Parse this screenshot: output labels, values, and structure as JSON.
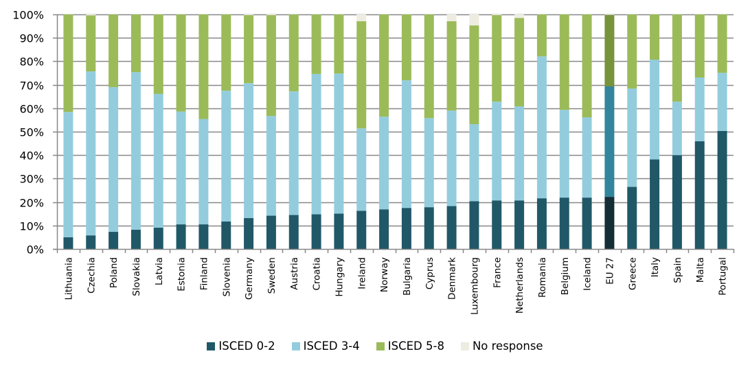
{
  "chart_data": {
    "type": "bar",
    "stacked": true,
    "title": "",
    "xlabel": "",
    "ylabel": "",
    "ylim": [
      0,
      100
    ],
    "y_ticks": [
      "0%",
      "10%",
      "20%",
      "30%",
      "40%",
      "50%",
      "60%",
      "70%",
      "80%",
      "90%",
      "100%"
    ],
    "grid": true,
    "legend_position": "bottom",
    "highlight_category": "EU 27",
    "categories": [
      "Lithuania",
      "Czechia",
      "Poland",
      "Slovakia",
      "Latvia",
      "Estonia",
      "Finland",
      "Slovenia",
      "Germany",
      "Sweden",
      "Austria",
      "Croatia",
      "Hungary",
      "Ireland",
      "Norway",
      "Bulgaria",
      "Cyprus",
      "Denmark",
      "Luxembourg",
      "France",
      "Netherlands",
      "Romania",
      "Belgium",
      "Iceland",
      "EU 27",
      "Greece",
      "Italy",
      "Spain",
      "Malta",
      "Portugal"
    ],
    "series": [
      {
        "name": "ISCED 0-2",
        "color": "#215868",
        "highlight_color": "#152E36",
        "values": [
          5.0,
          5.8,
          7.3,
          8.2,
          9.1,
          10.5,
          10.5,
          11.7,
          13.2,
          14.2,
          14.5,
          14.8,
          15.1,
          16.3,
          16.9,
          17.5,
          17.8,
          18.3,
          20.4,
          20.7,
          20.7,
          21.6,
          21.9,
          21.9,
          22.2,
          26.5,
          38.2,
          40.0,
          45.9,
          50.3
        ]
      },
      {
        "name": "ISCED 3-4",
        "color": "#93CDDD",
        "highlight_color": "#31859C",
        "values": [
          53.4,
          69.9,
          61.7,
          67.2,
          57.0,
          48.1,
          44.9,
          55.8,
          57.5,
          42.5,
          52.7,
          59.8,
          59.7,
          35.1,
          39.5,
          54.4,
          38.0,
          40.7,
          32.8,
          42.1,
          40.1,
          60.5,
          37.4,
          34.2,
          47.1,
          41.9,
          42.5,
          22.8,
          27.2,
          24.8
        ]
      },
      {
        "name": "ISCED 5-8",
        "color": "#9BBB59",
        "highlight_color": "#77933C",
        "values": [
          41.6,
          23.9,
          31.0,
          24.6,
          33.9,
          41.4,
          44.6,
          32.5,
          29.0,
          43.0,
          32.8,
          25.4,
          25.2,
          45.7,
          43.6,
          28.1,
          44.2,
          38.1,
          42.1,
          36.9,
          37.7,
          17.9,
          40.7,
          43.9,
          30.5,
          31.6,
          19.3,
          37.2,
          26.9,
          24.9
        ]
      },
      {
        "name": "No response",
        "color": "#EEECE1",
        "highlight_color": "#EEECE1",
        "values": [
          0,
          0.4,
          0,
          0,
          0,
          0,
          0,
          0,
          0.3,
          0.3,
          0,
          0,
          0,
          2.9,
          0,
          0,
          0,
          2.9,
          4.7,
          0.3,
          1.5,
          0,
          0,
          0,
          0.2,
          0,
          0,
          0,
          0,
          0
        ]
      }
    ]
  }
}
